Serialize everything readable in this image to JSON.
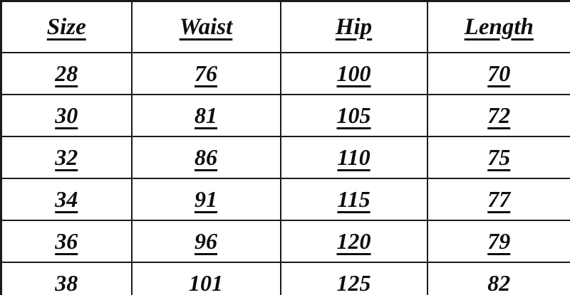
{
  "table": {
    "headers": [
      "Size",
      "Waist",
      "Hip",
      "Length"
    ],
    "rows": [
      [
        "28",
        "76",
        "100",
        "70"
      ],
      [
        "30",
        "81",
        "105",
        "72"
      ],
      [
        "32",
        "86",
        "110",
        "75"
      ],
      [
        "34",
        "91",
        "115",
        "77"
      ],
      [
        "36",
        "96",
        "120",
        "79"
      ],
      [
        "38",
        "101",
        "125",
        "82"
      ]
    ]
  },
  "chart_data": {
    "type": "table",
    "columns": [
      "Size",
      "Waist",
      "Hip",
      "Length"
    ],
    "rows": [
      [
        28,
        76,
        100,
        70
      ],
      [
        30,
        81,
        105,
        72
      ],
      [
        32,
        86,
        110,
        75
      ],
      [
        34,
        91,
        115,
        77
      ],
      [
        36,
        96,
        120,
        79
      ],
      [
        38,
        101,
        125,
        82
      ]
    ]
  },
  "colors": {
    "background": "#ffffff",
    "border": "#1a1a1a",
    "text": "#0e0e0e"
  }
}
